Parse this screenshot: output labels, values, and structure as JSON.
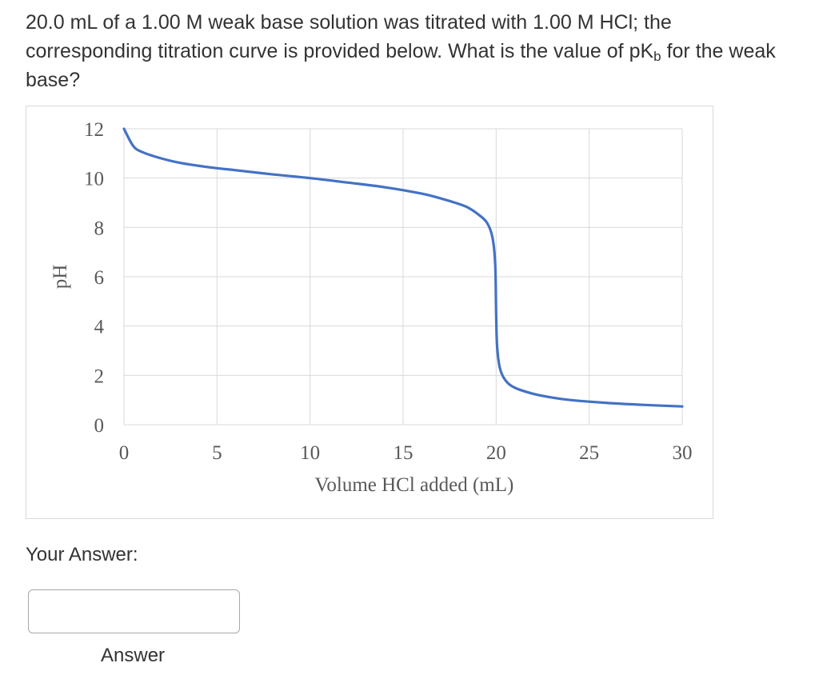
{
  "question": {
    "text_before": "20.0 mL of a 1.00 M weak base solution was titrated with 1.00 M HCl; the corresponding titration curve is provided below. What is the value of pK",
    "subscript": "b",
    "text_after": " for the weak base?"
  },
  "answer": {
    "label": "Your Answer:",
    "value": "",
    "placeholder": "",
    "caption": "Answer"
  },
  "colors": {
    "line": "#4472c4",
    "grid": "#d9d9d9",
    "axis_text": "#595959"
  },
  "chart_data": {
    "type": "line",
    "title": "",
    "xlabel": "Volume HCl added (mL)",
    "ylabel": "pH",
    "xlim": [
      0,
      30
    ],
    "ylim": [
      0,
      12
    ],
    "xticks": [
      0,
      5,
      10,
      15,
      20,
      25,
      30
    ],
    "yticks": [
      0,
      2,
      4,
      6,
      8,
      10,
      12
    ],
    "grid": true,
    "legend": "none",
    "series": [
      {
        "x": [
          0,
          0.5,
          1,
          2,
          3,
          4,
          5,
          6,
          8,
          10,
          12,
          14,
          16,
          17,
          18,
          18.5,
          19,
          19.5,
          19.8,
          19.95,
          20,
          20.05,
          20.2,
          20.5,
          21,
          22,
          23,
          24,
          26,
          28,
          30
        ],
        "y": [
          12,
          11.3,
          11.05,
          10.8,
          10.62,
          10.5,
          10.4,
          10.32,
          10.15,
          10,
          9.82,
          9.63,
          9.37,
          9.18,
          8.95,
          8.8,
          8.55,
          8.2,
          7.6,
          6.5,
          4.5,
          3.2,
          2.3,
          1.8,
          1.5,
          1.25,
          1.1,
          1.0,
          0.88,
          0.8,
          0.74
        ]
      }
    ]
  }
}
